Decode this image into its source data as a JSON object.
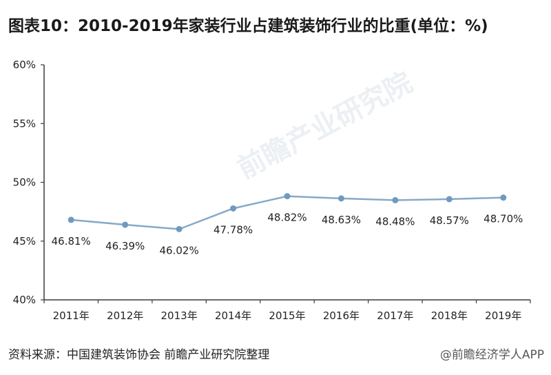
{
  "title": "图表10：2010-2019年家装行业占建筑装饰行业的比重(单位：%)",
  "source": "资料来源：中国建筑装饰协会 前瞻产业研究院整理",
  "credit": "@前瞻经济学人APP",
  "watermark": "前瞻产业研究院",
  "colors": {
    "line": "#86a9c6",
    "marker": "#6f9ac0",
    "axis": "#3a3a3a",
    "watermark": "#c9d3dd"
  },
  "chart_data": {
    "type": "line",
    "categories": [
      "2011年",
      "2012年",
      "2013年",
      "2014年",
      "2015年",
      "2016年",
      "2017年",
      "2018年",
      "2019年"
    ],
    "values": [
      46.81,
      46.39,
      46.02,
      47.78,
      48.82,
      48.63,
      48.48,
      48.57,
      48.7
    ],
    "data_labels": [
      "46.81%",
      "46.39%",
      "46.02%",
      "47.78%",
      "48.82%",
      "48.63%",
      "48.48%",
      "48.57%",
      "48.70%"
    ],
    "y_ticks": [
      40,
      45,
      50,
      55,
      60
    ],
    "y_tick_labels": [
      "40%",
      "45%",
      "50%",
      "55%",
      "60%"
    ],
    "ylim": [
      40,
      60
    ],
    "grid": false,
    "legend": "none"
  }
}
